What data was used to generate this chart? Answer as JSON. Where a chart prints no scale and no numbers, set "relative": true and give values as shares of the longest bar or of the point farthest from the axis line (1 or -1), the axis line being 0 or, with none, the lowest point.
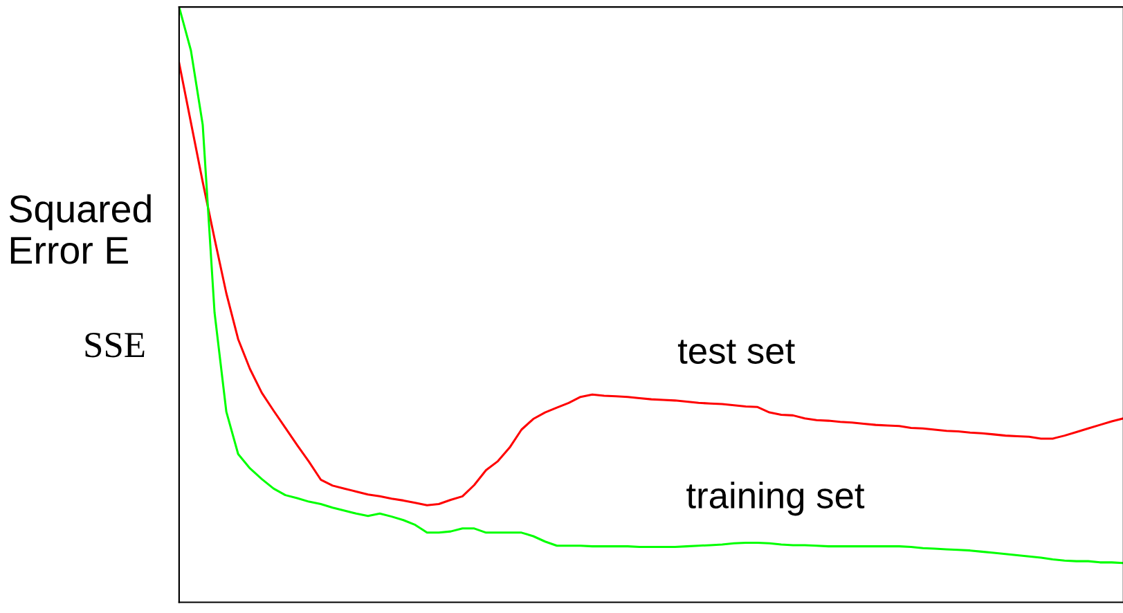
{
  "chart_data": {
    "type": "line",
    "relative": true,
    "ylabel": "Squared\nError E",
    "annotations": [
      "SSE"
    ],
    "categories": [
      null,
      null,
      null,
      null,
      null,
      null,
      null,
      null,
      null,
      null,
      null,
      null,
      null,
      null,
      null,
      null,
      null,
      null,
      null,
      null,
      null,
      null,
      null,
      null,
      null,
      null,
      null,
      null,
      null,
      null,
      null,
      null,
      null,
      null,
      null,
      null,
      null,
      null,
      null,
      null,
      null,
      null,
      null,
      null,
      null,
      null,
      null,
      null,
      null,
      null,
      null,
      null,
      null,
      null,
      null,
      null,
      null,
      null,
      null,
      null,
      null,
      null,
      null,
      null,
      null,
      null,
      null,
      null,
      null,
      null,
      null,
      null,
      null,
      null,
      null,
      null,
      null,
      null,
      null,
      null,
      null
    ],
    "series": [
      {
        "name": "test set",
        "color": "#ff0000",
        "values": [
          0.906,
          0.806,
          0.706,
          0.611,
          0.519,
          0.442,
          0.392,
          0.352,
          0.322,
          0.293,
          0.264,
          0.236,
          0.206,
          0.196,
          0.191,
          0.186,
          0.181,
          0.178,
          0.174,
          0.171,
          0.167,
          0.163,
          0.165,
          0.172,
          0.178,
          0.197,
          0.222,
          0.237,
          0.26,
          0.29,
          0.308,
          0.319,
          0.327,
          0.335,
          0.345,
          0.349,
          0.347,
          0.346,
          0.345,
          0.343,
          0.341,
          0.34,
          0.339,
          0.337,
          0.335,
          0.334,
          0.333,
          0.331,
          0.329,
          0.328,
          0.319,
          0.315,
          0.314,
          0.309,
          0.306,
          0.305,
          0.303,
          0.302,
          0.3,
          0.298,
          0.297,
          0.296,
          0.293,
          0.292,
          0.29,
          0.288,
          0.287,
          0.285,
          0.284,
          0.282,
          0.28,
          0.279,
          0.278,
          0.275,
          0.275,
          0.28,
          0.286,
          0.292,
          0.298,
          0.304,
          0.309
        ]
      },
      {
        "name": "training set",
        "color": "#00ff00",
        "values": [
          1.0,
          0.927,
          0.802,
          0.487,
          0.32,
          0.249,
          0.225,
          0.207,
          0.191,
          0.18,
          0.175,
          0.169,
          0.165,
          0.159,
          0.154,
          0.149,
          0.145,
          0.149,
          0.144,
          0.138,
          0.13,
          0.117,
          0.117,
          0.119,
          0.124,
          0.124,
          0.117,
          0.117,
          0.117,
          0.117,
          0.111,
          0.102,
          0.095,
          0.095,
          0.095,
          0.094,
          0.094,
          0.094,
          0.094,
          0.093,
          0.093,
          0.093,
          0.093,
          0.094,
          0.095,
          0.096,
          0.097,
          0.099,
          0.1,
          0.1,
          0.099,
          0.097,
          0.096,
          0.096,
          0.095,
          0.094,
          0.094,
          0.094,
          0.094,
          0.094,
          0.094,
          0.094,
          0.093,
          0.091,
          0.09,
          0.089,
          0.088,
          0.087,
          0.085,
          0.083,
          0.081,
          0.079,
          0.077,
          0.075,
          0.072,
          0.07,
          0.069,
          0.069,
          0.067,
          0.067,
          0.066
        ]
      }
    ]
  }
}
